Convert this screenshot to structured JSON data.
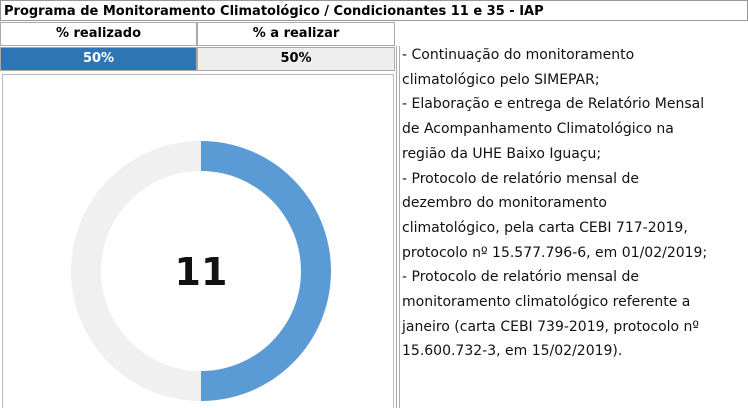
{
  "header": {
    "title": "Programa de Monitoramento Climatológico / Condicionantes 11 e 35 - IAP"
  },
  "table": {
    "columns": [
      "% realizado",
      "% a realizar"
    ],
    "rows": [
      [
        "50%",
        "50%"
      ]
    ]
  },
  "chart_data": {
    "type": "pie",
    "values": [
      50,
      50
    ],
    "colors": [
      "#5b9bd5",
      "#f0f0f0"
    ],
    "center_label": "11"
  },
  "notes": {
    "lines": [
      "- Continuação do monitoramento",
      "climatológico pelo SIMEPAR;",
      "- Elaboração e entrega de Relatório Mensal",
      "de Acompanhamento Climatológico na",
      "região da UHE Baixo Iguaçu;",
      "- Protocolo de relatório mensal de",
      "dezembro do monitoramento",
      "climatológico, pela carta CEBI 717-2019,",
      "protocolo nº 15.577.796-6, em 01/02/2019;",
      "- Protocolo de relatório mensal de",
      "monitoramento climatológico referente a",
      "janeiro (carta CEBI 739-2019, protocolo nº",
      "15.600.732-3, em 15/02/2019)."
    ]
  }
}
